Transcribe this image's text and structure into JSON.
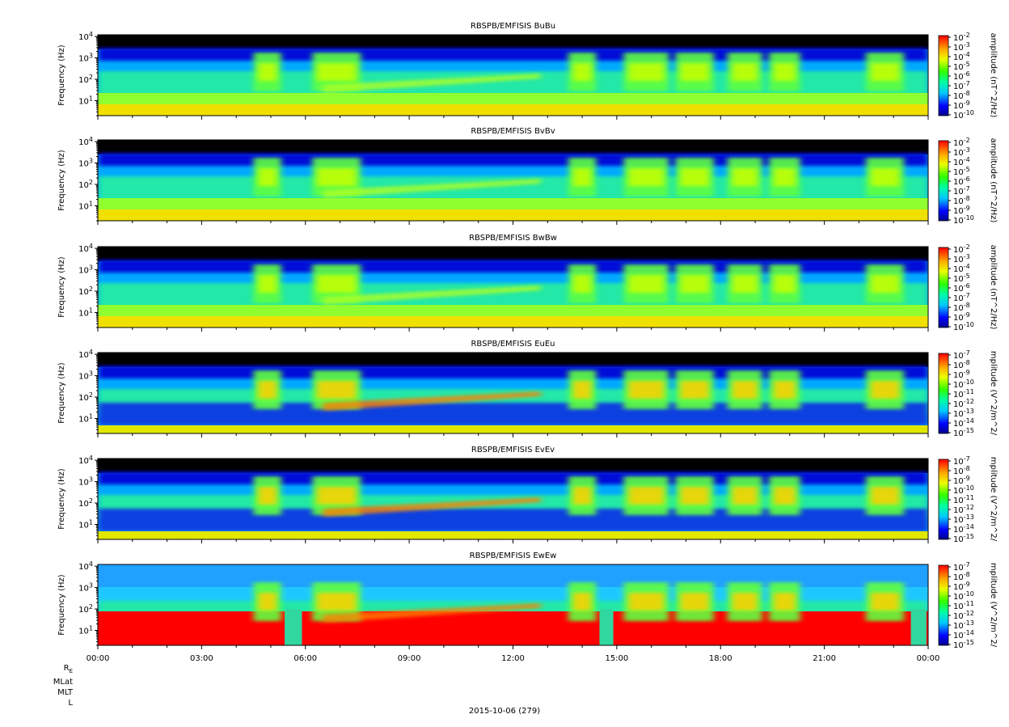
{
  "date_label": "2015-10-06 (279)",
  "ephemeris_labels": [
    "R_E",
    "MLat",
    "MLT",
    "L"
  ],
  "chart_data": [
    {
      "type": "heatmap",
      "title": "RBSPB/EMFISIS  BuBu",
      "ylabel": "Frequency (Hz)",
      "colorbar_label": "amplitude (nT^2/Hz)",
      "colorbar_ticks": [
        "10^-2",
        "10^-3",
        "10^-4",
        "10^-5",
        "10^-6",
        "10^-7",
        "10^-8",
        "10^-9",
        "10^-10"
      ],
      "y_ticks": [
        "10^4",
        "10^3",
        "10^2",
        "10^1"
      ],
      "ylim_hz": [
        2,
        12000
      ],
      "yscale": "log",
      "colormap": "rainbow",
      "variant": "B"
    },
    {
      "type": "heatmap",
      "title": "RBSPB/EMFISIS  BvBv",
      "ylabel": "Frequency (Hz)",
      "colorbar_label": "amplitude (nT^2/Hz)",
      "colorbar_ticks": [
        "10^-2",
        "10^-3",
        "10^-4",
        "10^-5",
        "10^-6",
        "10^-7",
        "10^-8",
        "10^-9",
        "10^-10"
      ],
      "y_ticks": [
        "10^4",
        "10^3",
        "10^2",
        "10^1"
      ],
      "ylim_hz": [
        2,
        12000
      ],
      "yscale": "log",
      "colormap": "rainbow",
      "variant": "B"
    },
    {
      "type": "heatmap",
      "title": "RBSPB/EMFISIS  BwBw",
      "ylabel": "Frequency (Hz)",
      "colorbar_label": "amplitude (nT^2/Hz)",
      "colorbar_ticks": [
        "10^-2",
        "10^-3",
        "10^-4",
        "10^-5",
        "10^-6",
        "10^-7",
        "10^-8",
        "10^-9",
        "10^-10"
      ],
      "y_ticks": [
        "10^4",
        "10^3",
        "10^2",
        "10^1"
      ],
      "ylim_hz": [
        2,
        12000
      ],
      "yscale": "log",
      "colormap": "rainbow",
      "variant": "B"
    },
    {
      "type": "heatmap",
      "title": "RBSPB/EMFISIS  EuEu",
      "ylabel": "Frequency (Hz)",
      "colorbar_label": "mplitude (V^2/m^2/",
      "colorbar_ticks": [
        "10^-7",
        "10^-8",
        "10^-9",
        "10^-10",
        "10^-11",
        "10^-12",
        "10^-13",
        "10^-14",
        "10^-15"
      ],
      "y_ticks": [
        "10^4",
        "10^3",
        "10^2",
        "10^1"
      ],
      "ylim_hz": [
        2,
        12000
      ],
      "yscale": "log",
      "colormap": "rainbow",
      "variant": "E"
    },
    {
      "type": "heatmap",
      "title": "RBSPB/EMFISIS  EvEv",
      "ylabel": "Frequency (Hz)",
      "colorbar_label": "mplitude (V^2/m^2/",
      "colorbar_ticks": [
        "10^-7",
        "10^-8",
        "10^-9",
        "10^-10",
        "10^-11",
        "10^-12",
        "10^-13",
        "10^-14",
        "10^-15"
      ],
      "y_ticks": [
        "10^4",
        "10^3",
        "10^2",
        "10^1"
      ],
      "ylim_hz": [
        2,
        12000
      ],
      "yscale": "log",
      "colormap": "rainbow",
      "variant": "E"
    },
    {
      "type": "heatmap",
      "title": "RBSPB/EMFISIS  EwEw",
      "ylabel": "Frequency (Hz)",
      "colorbar_label": "mplitude (V^2/m^2/",
      "colorbar_ticks": [
        "10^-7",
        "10^-8",
        "10^-9",
        "10^-10",
        "10^-11",
        "10^-12",
        "10^-13",
        "10^-14",
        "10^-15"
      ],
      "y_ticks": [
        "10^4",
        "10^3",
        "10^2",
        "10^1"
      ],
      "ylim_hz": [
        2,
        12000
      ],
      "yscale": "log",
      "colormap": "rainbow",
      "variant": "Ew"
    }
  ],
  "x_axis": {
    "ticks": [
      "00:00",
      "03:00",
      "06:00",
      "09:00",
      "12:00",
      "15:00",
      "18:00",
      "21:00",
      "00:00"
    ],
    "range_hours": [
      0,
      24
    ]
  }
}
